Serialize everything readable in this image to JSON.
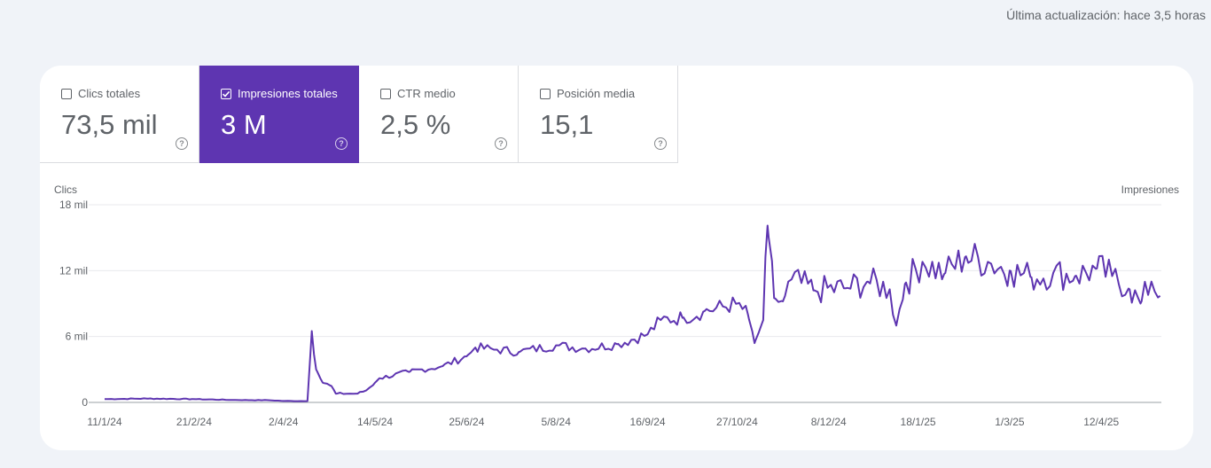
{
  "header": {
    "last_update": "Última actualización: hace 3,5 horas"
  },
  "metrics": [
    {
      "label": "Clics totales",
      "value": "73,5 mil",
      "checked": false
    },
    {
      "label": "Impresiones totales",
      "value": "3 M",
      "checked": true
    },
    {
      "label": "CTR medio",
      "value": "2,5 %",
      "checked": false
    },
    {
      "label": "Posición media",
      "value": "15,1",
      "checked": false
    }
  ],
  "colors": {
    "accent": "#5e35b1",
    "series": "#5e35b1",
    "grid": "#e8eaed",
    "text": "#5f6368"
  },
  "chart_data": {
    "type": "line",
    "left_axis_title": "Clics",
    "right_axis_title": "Impresiones",
    "y_ticks": [
      {
        "value": 0,
        "label": "0"
      },
      {
        "value": 6000,
        "label": "6 mil"
      },
      {
        "value": 12000,
        "label": "12 mil"
      },
      {
        "value": 18000,
        "label": "18 mil"
      }
    ],
    "ylim": [
      0,
      18000
    ],
    "x_tick_labels": [
      "11/1/24",
      "21/2/24",
      "2/4/24",
      "14/5/24",
      "25/6/24",
      "5/8/24",
      "16/9/24",
      "27/10/24",
      "8/12/24",
      "18/1/25",
      "1/3/25",
      "12/4/25"
    ],
    "x_tick_days": [
      0,
      41,
      82,
      124,
      166,
      207,
      249,
      290,
      332,
      373,
      415,
      457
    ],
    "x_domain_days": [
      0,
      490
    ],
    "series": [
      {
        "name": "Impresiones",
        "anchors": [
          [
            0,
            300
          ],
          [
            20,
            350
          ],
          [
            40,
            300
          ],
          [
            60,
            220
          ],
          [
            75,
            200
          ],
          [
            82,
            130
          ],
          [
            93,
            120
          ],
          [
            95,
            6500
          ],
          [
            97,
            3000
          ],
          [
            100,
            1800
          ],
          [
            104,
            1500
          ],
          [
            106,
            800
          ],
          [
            116,
            800
          ],
          [
            120,
            1100
          ],
          [
            124,
            1800
          ],
          [
            126,
            2200
          ],
          [
            140,
            2800
          ],
          [
            155,
            3300
          ],
          [
            166,
            4200
          ],
          [
            170,
            5000
          ],
          [
            180,
            4800
          ],
          [
            190,
            4600
          ],
          [
            207,
            5200
          ],
          [
            220,
            4900
          ],
          [
            235,
            5300
          ],
          [
            249,
            6200
          ],
          [
            255,
            7500
          ],
          [
            265,
            7700
          ],
          [
            275,
            8300
          ],
          [
            290,
            9000
          ],
          [
            295,
            8000
          ],
          [
            298,
            5400
          ],
          [
            302,
            7500
          ],
          [
            304,
            16100
          ],
          [
            307,
            9500
          ],
          [
            311,
            9200
          ],
          [
            315,
            11200
          ],
          [
            325,
            10200
          ],
          [
            340,
            10400
          ],
          [
            350,
            11000
          ],
          [
            360,
            10300
          ],
          [
            363,
            7000
          ],
          [
            367,
            10800
          ],
          [
            375,
            12800
          ],
          [
            385,
            11700
          ],
          [
            395,
            13300
          ],
          [
            405,
            12800
          ],
          [
            415,
            12000
          ],
          [
            425,
            11400
          ],
          [
            435,
            11800
          ],
          [
            445,
            11500
          ],
          [
            455,
            12200
          ],
          [
            462,
            11500
          ],
          [
            470,
            10300
          ],
          [
            475,
            9000
          ],
          [
            480,
            11000
          ],
          [
            484,
            9700
          ]
        ],
        "start_day": 0,
        "end_day": 484,
        "step_days": 1.5
      }
    ]
  }
}
